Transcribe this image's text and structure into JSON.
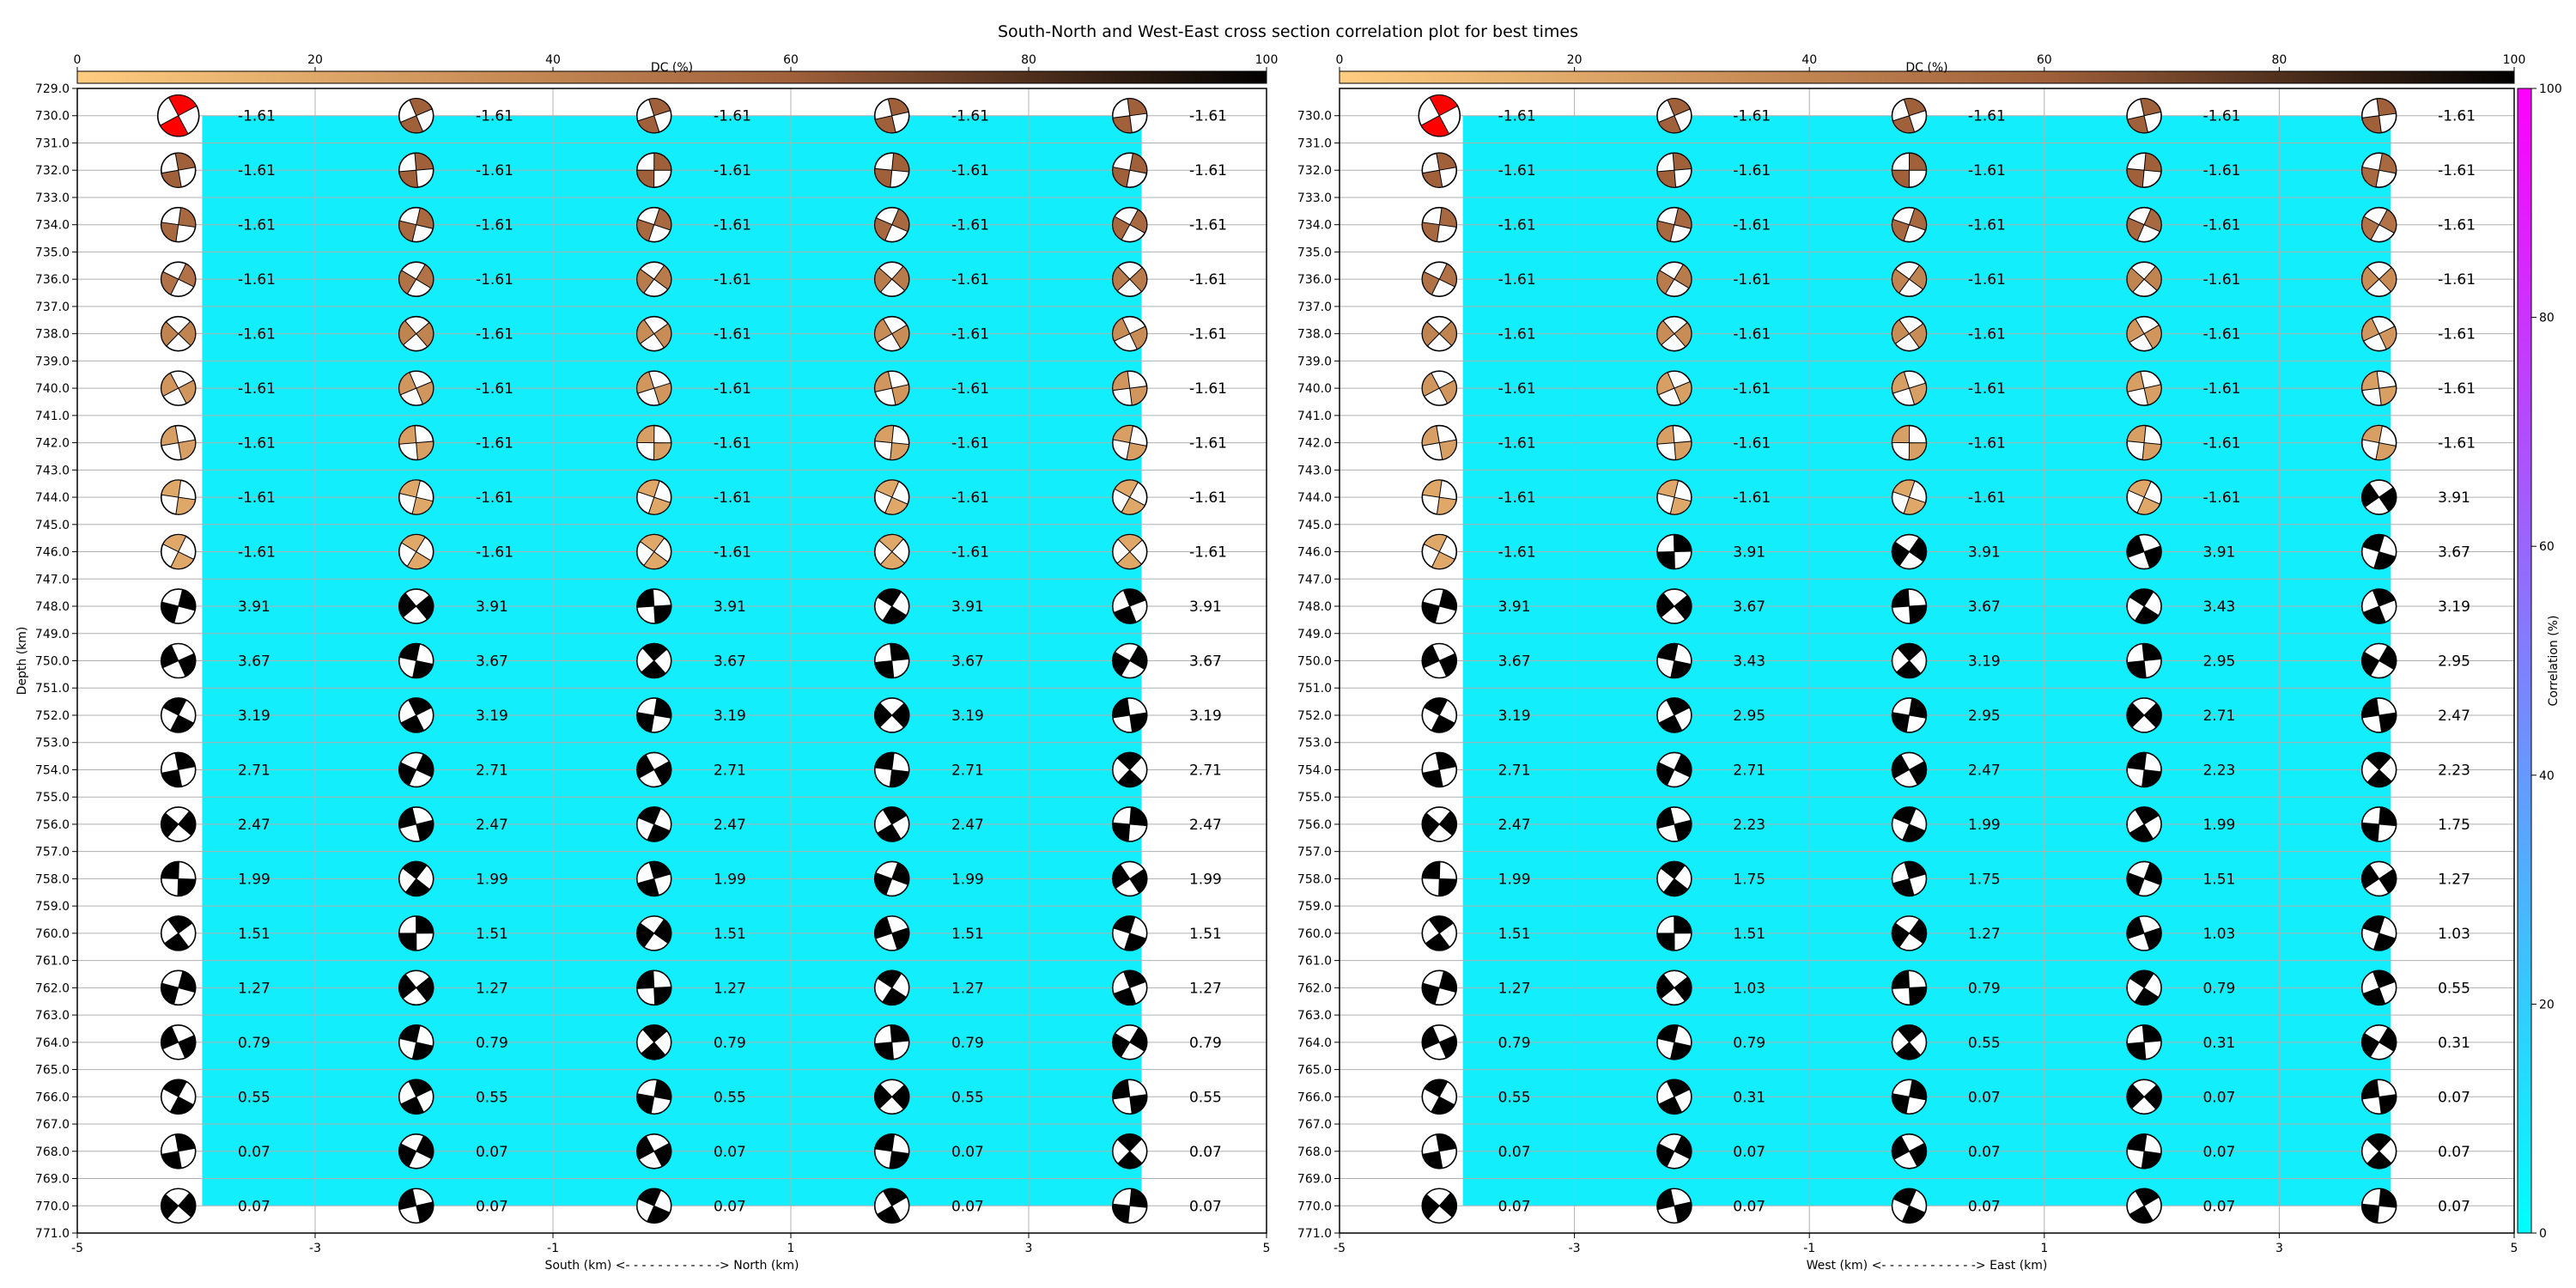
{
  "title": "South-North and West-East cross section correlation plot for best times",
  "chart_data": [
    {
      "type": "scatter",
      "panel": "south-north",
      "xlabel": "South (km) <- - - - - - - - - - - -> North (km)",
      "ylabel": "Depth (km)",
      "xlim": [
        -5,
        5
      ],
      "ylim": [
        771,
        729
      ],
      "x_ticks": [
        "-5",
        "-3",
        "-1",
        "1",
        "3",
        "5"
      ],
      "y_ticks": [
        "729.0",
        "730.0",
        "731.0",
        "732.0",
        "733.0",
        "734.0",
        "735.0",
        "736.0",
        "737.0",
        "738.0",
        "739.0",
        "740.0",
        "741.0",
        "742.0",
        "743.0",
        "744.0",
        "745.0",
        "746.0",
        "747.0",
        "748.0",
        "749.0",
        "750.0",
        "751.0",
        "752.0",
        "753.0",
        "754.0",
        "755.0",
        "756.0",
        "757.0",
        "758.0",
        "759.0",
        "760.0",
        "761.0",
        "762.0",
        "763.0",
        "764.0",
        "765.0",
        "766.0",
        "767.0",
        "768.0",
        "769.0",
        "770.0",
        "771.0"
      ],
      "grid": true,
      "x": [
        -4,
        -2,
        0,
        2,
        4
      ],
      "depths": [
        730,
        732,
        734,
        736,
        738,
        740,
        742,
        744,
        746,
        748,
        750,
        752,
        754,
        756,
        758,
        760,
        762,
        764,
        766,
        768,
        770
      ],
      "values": [
        [
          "-1.61",
          "-1.61",
          "-1.61",
          "-1.61",
          "-1.61"
        ],
        [
          "-1.61",
          "-1.61",
          "-1.61",
          "-1.61",
          "-1.61"
        ],
        [
          "-1.61",
          "-1.61",
          "-1.61",
          "-1.61",
          "-1.61"
        ],
        [
          "-1.61",
          "-1.61",
          "-1.61",
          "-1.61",
          "-1.61"
        ],
        [
          "-1.61",
          "-1.61",
          "-1.61",
          "-1.61",
          "-1.61"
        ],
        [
          "-1.61",
          "-1.61",
          "-1.61",
          "-1.61",
          "-1.61"
        ],
        [
          "-1.61",
          "-1.61",
          "-1.61",
          "-1.61",
          "-1.61"
        ],
        [
          "-1.61",
          "-1.61",
          "-1.61",
          "-1.61",
          "-1.61"
        ],
        [
          "-1.61",
          "-1.61",
          "-1.61",
          "-1.61",
          "-1.61"
        ],
        [
          "3.91",
          "3.91",
          "3.91",
          "3.91",
          "3.91"
        ],
        [
          "3.67",
          "3.67",
          "3.67",
          "3.67",
          "3.67"
        ],
        [
          "3.19",
          "3.19",
          "3.19",
          "3.19",
          "3.19"
        ],
        [
          "2.71",
          "2.71",
          "2.71",
          "2.71",
          "2.71"
        ],
        [
          "2.47",
          "2.47",
          "2.47",
          "2.47",
          "2.47"
        ],
        [
          "1.99",
          "1.99",
          "1.99",
          "1.99",
          "1.99"
        ],
        [
          "1.51",
          "1.51",
          "1.51",
          "1.51",
          "1.51"
        ],
        [
          "1.27",
          "1.27",
          "1.27",
          "1.27",
          "1.27"
        ],
        [
          "0.79",
          "0.79",
          "0.79",
          "0.79",
          "0.79"
        ],
        [
          "0.55",
          "0.55",
          "0.55",
          "0.55",
          "0.55"
        ],
        [
          "0.07",
          "0.07",
          "0.07",
          "0.07",
          "0.07"
        ],
        [
          "0.07",
          "0.07",
          "0.07",
          "0.07",
          "0.07"
        ]
      ],
      "dc_percent": [
        [
          0,
          60,
          60,
          60,
          60
        ],
        [
          60,
          60,
          60,
          60,
          60
        ],
        [
          55,
          55,
          55,
          55,
          55
        ],
        [
          50,
          50,
          45,
          45,
          45
        ],
        [
          40,
          40,
          35,
          35,
          35
        ],
        [
          30,
          30,
          30,
          30,
          30
        ],
        [
          25,
          25,
          25,
          25,
          25
        ],
        [
          20,
          20,
          20,
          20,
          20
        ],
        [
          20,
          20,
          20,
          20,
          20
        ],
        [
          100,
          100,
          100,
          100,
          100
        ],
        [
          100,
          100,
          100,
          100,
          100
        ],
        [
          100,
          100,
          100,
          100,
          100
        ],
        [
          100,
          100,
          100,
          100,
          100
        ],
        [
          100,
          100,
          100,
          100,
          100
        ],
        [
          100,
          100,
          100,
          100,
          100
        ],
        [
          100,
          100,
          100,
          100,
          100
        ],
        [
          100,
          100,
          100,
          100,
          100
        ],
        [
          100,
          100,
          100,
          100,
          100
        ],
        [
          100,
          100,
          100,
          100,
          100
        ],
        [
          100,
          100,
          100,
          100,
          100
        ],
        [
          100,
          100,
          100,
          100,
          100
        ]
      ],
      "highlight": {
        "row": 0,
        "col": 0,
        "color": "#ff0000"
      },
      "correlation_percent": 0,
      "colorbar": {
        "label": "DC (%)",
        "ticks": [
          "0",
          "20",
          "40",
          "60",
          "80",
          "100"
        ]
      }
    },
    {
      "type": "scatter",
      "panel": "west-east",
      "xlabel": "West (km) <- - - - - - - - - - - -> East (km)",
      "xlim": [
        -5,
        5
      ],
      "ylim": [
        771,
        729
      ],
      "x_ticks": [
        "-5",
        "-3",
        "-1",
        "1",
        "3",
        "5"
      ],
      "y_ticks": [
        "730.0",
        "731.0",
        "732.0",
        "733.0",
        "734.0",
        "735.0",
        "736.0",
        "737.0",
        "738.0",
        "739.0",
        "740.0",
        "741.0",
        "742.0",
        "743.0",
        "744.0",
        "745.0",
        "746.0",
        "747.0",
        "748.0",
        "749.0",
        "750.0",
        "751.0",
        "752.0",
        "753.0",
        "754.0",
        "755.0",
        "756.0",
        "757.0",
        "758.0",
        "759.0",
        "760.0",
        "761.0",
        "762.0",
        "763.0",
        "764.0",
        "765.0",
        "766.0",
        "767.0",
        "768.0",
        "769.0",
        "770.0",
        "771.0"
      ],
      "grid": true,
      "x": [
        -4,
        -2,
        0,
        2,
        4
      ],
      "depths": [
        730,
        732,
        734,
        736,
        738,
        740,
        742,
        744,
        746,
        748,
        750,
        752,
        754,
        756,
        758,
        760,
        762,
        764,
        766,
        768,
        770
      ],
      "values": [
        [
          "-1.61",
          "-1.61",
          "-1.61",
          "-1.61",
          "-1.61"
        ],
        [
          "-1.61",
          "-1.61",
          "-1.61",
          "-1.61",
          "-1.61"
        ],
        [
          "-1.61",
          "-1.61",
          "-1.61",
          "-1.61",
          "-1.61"
        ],
        [
          "-1.61",
          "-1.61",
          "-1.61",
          "-1.61",
          "-1.61"
        ],
        [
          "-1.61",
          "-1.61",
          "-1.61",
          "-1.61",
          "-1.61"
        ],
        [
          "-1.61",
          "-1.61",
          "-1.61",
          "-1.61",
          "-1.61"
        ],
        [
          "-1.61",
          "-1.61",
          "-1.61",
          "-1.61",
          "-1.61"
        ],
        [
          "-1.61",
          "-1.61",
          "-1.61",
          "-1.61",
          "3.91"
        ],
        [
          "-1.61",
          "3.91",
          "3.91",
          "3.91",
          "3.67"
        ],
        [
          "3.91",
          "3.67",
          "3.67",
          "3.43",
          "3.19"
        ],
        [
          "3.67",
          "3.43",
          "3.19",
          "2.95",
          "2.95"
        ],
        [
          "3.19",
          "2.95",
          "2.95",
          "2.71",
          "2.47"
        ],
        [
          "2.71",
          "2.71",
          "2.47",
          "2.23",
          "2.23"
        ],
        [
          "2.47",
          "2.23",
          "1.99",
          "1.99",
          "1.75"
        ],
        [
          "1.99",
          "1.75",
          "1.75",
          "1.51",
          "1.27"
        ],
        [
          "1.51",
          "1.51",
          "1.27",
          "1.03",
          "1.03"
        ],
        [
          "1.27",
          "1.03",
          "0.79",
          "0.79",
          "0.55"
        ],
        [
          "0.79",
          "0.79",
          "0.55",
          "0.31",
          "0.31"
        ],
        [
          "0.55",
          "0.31",
          "0.07",
          "0.07",
          "0.07"
        ],
        [
          "0.07",
          "0.07",
          "0.07",
          "0.07",
          "0.07"
        ],
        [
          "0.07",
          "0.07",
          "0.07",
          "0.07",
          "0.07"
        ]
      ],
      "dc_percent": [
        [
          0,
          60,
          60,
          60,
          60
        ],
        [
          60,
          60,
          60,
          60,
          55
        ],
        [
          55,
          55,
          55,
          55,
          50
        ],
        [
          50,
          45,
          40,
          40,
          35
        ],
        [
          40,
          35,
          35,
          30,
          30
        ],
        [
          30,
          25,
          25,
          25,
          25
        ],
        [
          25,
          25,
          25,
          25,
          25
        ],
        [
          20,
          20,
          20,
          20,
          100
        ],
        [
          20,
          100,
          100,
          100,
          100
        ],
        [
          100,
          100,
          100,
          100,
          100
        ],
        [
          100,
          100,
          100,
          100,
          100
        ],
        [
          100,
          100,
          100,
          100,
          100
        ],
        [
          100,
          100,
          100,
          100,
          100
        ],
        [
          100,
          100,
          100,
          100,
          100
        ],
        [
          100,
          100,
          100,
          100,
          100
        ],
        [
          100,
          100,
          100,
          100,
          100
        ],
        [
          100,
          100,
          100,
          100,
          100
        ],
        [
          100,
          100,
          100,
          100,
          100
        ],
        [
          100,
          100,
          100,
          100,
          100
        ],
        [
          100,
          100,
          100,
          100,
          100
        ],
        [
          100,
          100,
          100,
          100,
          100
        ]
      ],
      "highlight": {
        "row": 0,
        "col": 0,
        "color": "#ff0000"
      },
      "correlation_percent": 0,
      "colorbar": {
        "label": "DC (%)",
        "ticks": [
          "0",
          "20",
          "40",
          "60",
          "80",
          "100"
        ]
      }
    }
  ],
  "correlation_colorbar": {
    "label": "Correlation (%)",
    "ticks": [
      "0",
      "20",
      "40",
      "60",
      "80",
      "100"
    ],
    "colors": [
      "#00ffff",
      "#ff00ff"
    ]
  },
  "colors": {
    "background_fill": "#12eefb",
    "grid": "#b0b0b0",
    "dc_low": "#ffcc80",
    "dc_mid": "#a0603a",
    "dc_high": "#000000",
    "highlight": "#ff0000"
  }
}
